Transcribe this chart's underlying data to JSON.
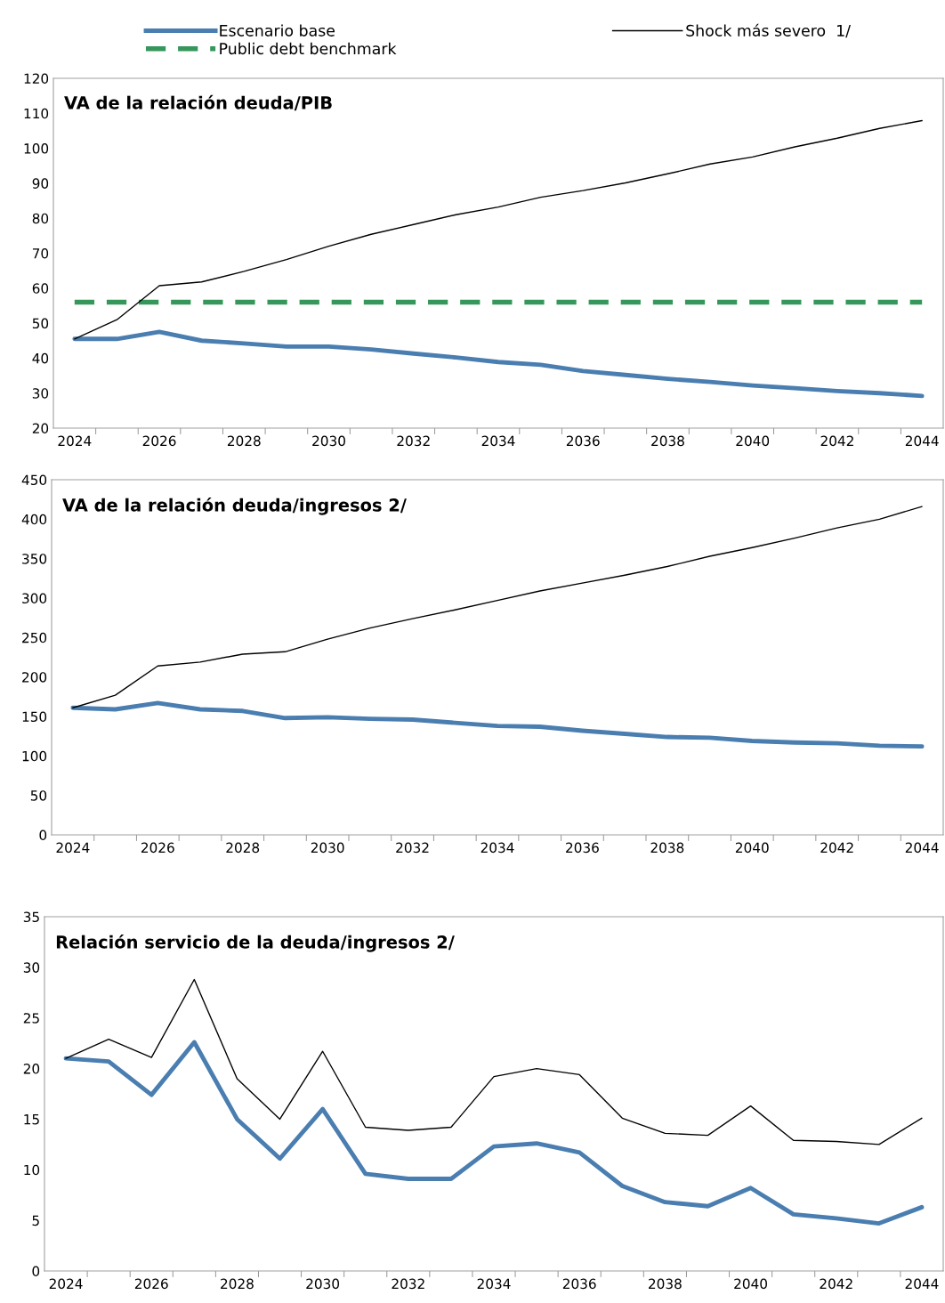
{
  "chart_data": [
    {
      "type": "line",
      "title": "VA de la relación deuda/PIB",
      "categories": [
        "2024",
        null,
        "2026",
        null,
        "2028",
        null,
        "2030",
        null,
        "2032",
        null,
        "2034",
        null,
        "2036",
        null,
        "2038",
        null,
        "2040",
        null,
        "2042",
        null,
        "2044"
      ],
      "series": [
        {
          "name": "Escenario base",
          "color": "#4a7eb0",
          "line_style": "solid",
          "values": [
            45.5,
            45.5,
            47.5,
            45,
            44.2,
            43.3,
            43.3,
            42.5,
            41.3,
            40.2,
            38.9,
            38.1,
            36.3,
            35.2,
            34.1,
            33.2,
            32.2,
            31.4,
            30.6,
            30,
            29.2
          ]
        },
        {
          "name": "Public debt benchmark",
          "color": "#36975b",
          "line_style": "dashed",
          "values": [
            56,
            56,
            56,
            56,
            56,
            56,
            56,
            56,
            56,
            56,
            56,
            56,
            56,
            56,
            56,
            56,
            56,
            56,
            56,
            56,
            56
          ]
        },
        {
          "name": "Shock más severo  1/",
          "color": "#000000",
          "line_style": "solid",
          "values": [
            45.5,
            51,
            60.7,
            61.8,
            64.8,
            68.2,
            72,
            75.4,
            78.2,
            81,
            83.2,
            86,
            87.9,
            90.1,
            92.7,
            95.5,
            97.5,
            100.4,
            102.9,
            105.7,
            107.9
          ]
        }
      ],
      "ylim": [
        20,
        120
      ],
      "yticks": [
        20,
        30,
        40,
        50,
        60,
        70,
        80,
        90,
        100,
        110,
        120
      ],
      "grid": false,
      "legend": "top",
      "marker": "none"
    },
    {
      "type": "line",
      "title": "VA de la relación deuda/ingresos 2/",
      "categories": [
        "2024",
        null,
        "2026",
        null,
        "2028",
        null,
        "2030",
        null,
        "2032",
        null,
        "2034",
        null,
        "2036",
        null,
        "2038",
        null,
        "2040",
        null,
        "2042",
        null,
        "2044"
      ],
      "series": [
        {
          "color": "#4a7eb0",
          "line_style": "solid",
          "values": [
            161,
            159,
            167,
            159,
            157,
            148,
            149,
            147,
            146,
            142,
            138,
            137,
            132,
            128,
            124,
            123,
            119,
            117,
            116,
            113,
            112
          ]
        },
        {
          "color": "#000000",
          "line_style": "solid",
          "values": [
            161,
            177,
            214,
            219,
            229,
            232,
            248,
            262,
            274,
            285,
            297,
            309,
            319,
            329,
            340,
            353,
            364,
            376,
            389,
            400,
            416
          ]
        }
      ],
      "ylim": [
        0,
        450
      ],
      "yticks": [
        0,
        50,
        100,
        150,
        200,
        250,
        300,
        350,
        400,
        450
      ],
      "grid": false,
      "legend": false,
      "marker": "none"
    },
    {
      "type": "line",
      "title": "Relación servicio de la deuda/ingresos 2/",
      "categories": [
        "2024",
        null,
        "2026",
        null,
        "2028",
        null,
        "2030",
        null,
        "2032",
        null,
        "2034",
        null,
        "2036",
        null,
        "2038",
        null,
        "2040",
        null,
        "2042",
        null,
        "2044"
      ],
      "series": [
        {
          "color": "#4a7eb0",
          "line_style": "solid",
          "values": [
            21,
            20.7,
            17.4,
            22.6,
            15,
            11.1,
            16,
            9.6,
            9.1,
            9.1,
            12.3,
            12.6,
            11.7,
            8.4,
            6.8,
            6.4,
            8.2,
            5.6,
            5.2,
            4.7,
            6.3
          ]
        },
        {
          "color": "#000000",
          "line_style": "solid",
          "values": [
            21,
            22.9,
            21.1,
            28.8,
            19,
            15,
            21.7,
            14.2,
            13.9,
            14.2,
            19.2,
            20,
            19.4,
            15.1,
            13.6,
            13.4,
            16.3,
            12.9,
            12.8,
            12.5,
            15.1
          ]
        }
      ],
      "ylim": [
        0,
        35
      ],
      "yticks": [
        0,
        5,
        10,
        15,
        20,
        25,
        30,
        35
      ],
      "grid": false,
      "legend": false,
      "marker": "none"
    }
  ]
}
